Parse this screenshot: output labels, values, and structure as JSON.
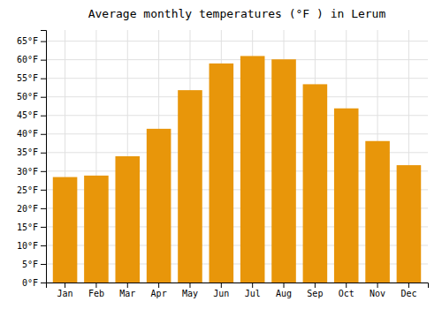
{
  "chart_data": {
    "type": "bar",
    "title": "Average monthly temperatures (°F ) in Lerum",
    "categories": [
      "Jan",
      "Feb",
      "Mar",
      "Apr",
      "May",
      "Jun",
      "Jul",
      "Aug",
      "Sep",
      "Oct",
      "Nov",
      "Dec"
    ],
    "values": [
      28.4,
      28.8,
      34.0,
      41.4,
      51.8,
      59.0,
      61.0,
      60.1,
      53.4,
      46.9,
      38.1,
      31.6
    ],
    "color": "#E8960A",
    "ylim": [
      0,
      68
    ],
    "yticks": [
      {
        "value": 0,
        "label": "0°F"
      },
      {
        "value": 5,
        "label": "5°F"
      },
      {
        "value": 10,
        "label": "10°F"
      },
      {
        "value": 15,
        "label": "15°F"
      },
      {
        "value": 20,
        "label": "20°F"
      },
      {
        "value": 25,
        "label": "25°F"
      },
      {
        "value": 30,
        "label": "30°F"
      },
      {
        "value": 35,
        "label": "35°F"
      },
      {
        "value": 40,
        "label": "40°F"
      },
      {
        "value": 45,
        "label": "45°F"
      },
      {
        "value": 50,
        "label": "50°F"
      },
      {
        "value": 55,
        "label": "55°F"
      },
      {
        "value": 60,
        "label": "60°F"
      },
      {
        "value": 65,
        "label": "65°F"
      }
    ],
    "grid": true
  }
}
